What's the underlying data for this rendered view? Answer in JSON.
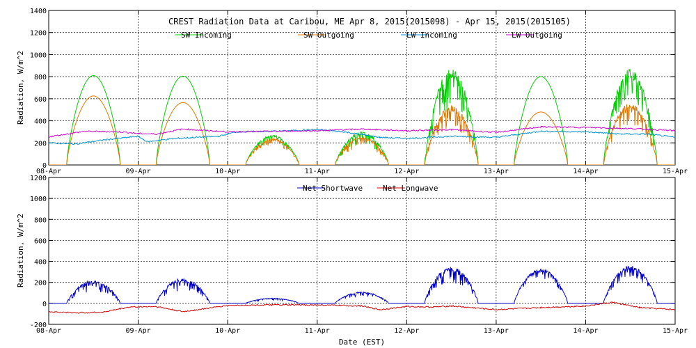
{
  "chart_data": [
    {
      "type": "line",
      "title": "CREST Radiation Data at Caribou, ME   Apr  8, 2015(2015098) - Apr 15, 2015(2015105)",
      "ylabel": "Radiation, W/m^2",
      "xlabel": "",
      "ylim": [
        0,
        1400
      ],
      "yticks": [
        0,
        200,
        400,
        600,
        800,
        1000,
        1200,
        1400
      ],
      "x_categories": [
        "08-Apr",
        "09-Apr",
        "10-Apr",
        "11-Apr",
        "12-Apr",
        "13-Apr",
        "14-Apr",
        "15-Apr"
      ],
      "xlim_days": [
        0,
        7
      ],
      "grid": true,
      "legend_placement": "top",
      "series": [
        {
          "name": "SW Incoming",
          "color": "#00d000",
          "kind": "sw",
          "peaks": [
            810,
            805,
            270,
            300,
            880,
            800,
            870
          ],
          "noise": [
            0.05,
            0.03,
            0.25,
            0.4,
            0.45,
            0.04,
            0.35
          ]
        },
        {
          "name": "SW Outgoing",
          "color": "#e07800",
          "kind": "sw",
          "peaks": [
            625,
            565,
            240,
            260,
            540,
            480,
            560
          ],
          "noise": [
            0.04,
            0.03,
            0.25,
            0.4,
            0.4,
            0.04,
            0.35
          ]
        },
        {
          "name": "LW Incoming",
          "color": "#0090d0",
          "kind": "lw",
          "points": [
            [
              0,
              200
            ],
            [
              0.3,
              190
            ],
            [
              0.6,
              225
            ],
            [
              1.0,
              260
            ],
            [
              1.1,
              210
            ],
            [
              1.4,
              240
            ],
            [
              1.9,
              260
            ],
            [
              2.1,
              300
            ],
            [
              2.5,
              305
            ],
            [
              3.0,
              320
            ],
            [
              3.3,
              300
            ],
            [
              3.7,
              250
            ],
            [
              4.0,
              240
            ],
            [
              4.5,
              260
            ],
            [
              5.0,
              250
            ],
            [
              5.5,
              305
            ],
            [
              6.0,
              300
            ],
            [
              6.4,
              280
            ],
            [
              6.7,
              280
            ],
            [
              7.0,
              250
            ]
          ]
        },
        {
          "name": "LW Outgoing",
          "color": "#d000d0",
          "kind": "lw",
          "points": [
            [
              0,
              255
            ],
            [
              0.4,
              305
            ],
            [
              0.8,
              300
            ],
            [
              1.0,
              285
            ],
            [
              1.2,
              280
            ],
            [
              1.5,
              325
            ],
            [
              2.0,
              300
            ],
            [
              2.5,
              305
            ],
            [
              3.0,
              310
            ],
            [
              3.5,
              325
            ],
            [
              4.0,
              310
            ],
            [
              4.5,
              320
            ],
            [
              5.0,
              295
            ],
            [
              5.5,
              345
            ],
            [
              6.0,
              340
            ],
            [
              6.5,
              330
            ],
            [
              7.0,
              310
            ]
          ]
        }
      ]
    },
    {
      "type": "line",
      "title": "",
      "ylabel": "Radiation, W/m^2",
      "xlabel": "Date (EST)",
      "ylim": [
        -200,
        1200
      ],
      "yticks": [
        -200,
        0,
        200,
        400,
        600,
        800,
        1000,
        1200
      ],
      "x_categories": [
        "08-Apr",
        "09-Apr",
        "10-Apr",
        "11-Apr",
        "12-Apr",
        "13-Apr",
        "14-Apr",
        "15-Apr"
      ],
      "xlim_days": [
        0,
        7
      ],
      "grid": true,
      "legend_placement": "top",
      "series": [
        {
          "name": "Net Shortwave",
          "color": "#0000c8",
          "kind": "sw",
          "peaks": [
            220,
            240,
            50,
            110,
            350,
            330,
            360
          ],
          "noise": [
            0.5,
            0.5,
            0.4,
            0.45,
            0.45,
            0.3,
            0.35
          ]
        },
        {
          "name": "Net Longwave",
          "color": "#d00000",
          "kind": "lw",
          "points": [
            [
              0,
              -80
            ],
            [
              0.3,
              -90
            ],
            [
              0.6,
              -85
            ],
            [
              0.9,
              -35
            ],
            [
              1.2,
              -30
            ],
            [
              1.5,
              -80
            ],
            [
              2.0,
              -20
            ],
            [
              2.5,
              -15
            ],
            [
              3.0,
              -15
            ],
            [
              3.5,
              -25
            ],
            [
              3.7,
              -60
            ],
            [
              4.0,
              -30
            ],
            [
              4.3,
              -35
            ],
            [
              4.5,
              -25
            ],
            [
              5.0,
              -60
            ],
            [
              5.5,
              -40
            ],
            [
              6.0,
              -25
            ],
            [
              6.3,
              10
            ],
            [
              6.6,
              -40
            ],
            [
              7.0,
              -60
            ]
          ]
        }
      ]
    }
  ]
}
